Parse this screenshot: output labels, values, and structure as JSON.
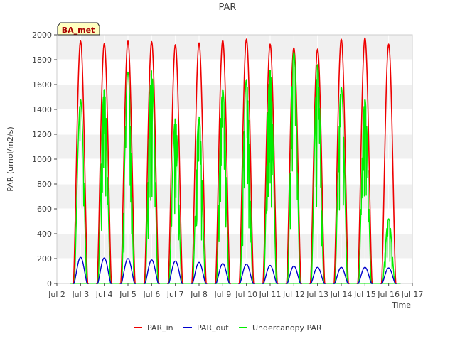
{
  "chart_data": {
    "type": "line",
    "title": "PAR",
    "xlabel": "Time",
    "ylabel": "PAR (umol/m2/s)",
    "site_badge": "BA_met",
    "xlim": [
      "Jul 2",
      "Jul 17"
    ],
    "ylim": [
      0,
      2000
    ],
    "x_ticks": [
      "Jul 2",
      "Jul 3",
      "Jul 4",
      "Jul 5",
      "Jul 6",
      "Jul 7",
      "Jul 8",
      "Jul 9",
      "Jul 10",
      "Jul 11",
      "Jul 12",
      "Jul 13",
      "Jul 14",
      "Jul 15",
      "Jul 16",
      "Jul 17"
    ],
    "y_ticks": [
      0,
      200,
      400,
      600,
      800,
      1000,
      1200,
      1400,
      1600,
      1800,
      2000
    ],
    "grid": true,
    "band_shading": true,
    "legend_position": "bottom",
    "series": [
      {
        "name": "PAR_in",
        "color": "#ee0000",
        "daily_peaks": [
          1950,
          1930,
          1950,
          1945,
          1920,
          1935,
          1955,
          1965,
          1925,
          1895,
          1885,
          1965,
          1975,
          1925
        ]
      },
      {
        "name": "PAR_out",
        "color": "#0000cc",
        "daily_peaks": [
          210,
          205,
          200,
          190,
          180,
          170,
          160,
          155,
          145,
          140,
          130,
          130,
          130,
          125
        ]
      },
      {
        "name": "Undercanopy PAR",
        "color": "#00ee00",
        "daily_peaks": [
          1480,
          1560,
          1700,
          1710,
          1330,
          1340,
          1560,
          1640,
          1720,
          1860,
          1760,
          1580,
          1480,
          520
        ]
      }
    ],
    "day_starts": [
      "Jul 3",
      "Jul 4",
      "Jul 5",
      "Jul 6",
      "Jul 7",
      "Jul 8",
      "Jul 9",
      "Jul 10",
      "Jul 11",
      "Jul 12",
      "Jul 13",
      "Jul 14",
      "Jul 15",
      "Jul 16"
    ]
  }
}
